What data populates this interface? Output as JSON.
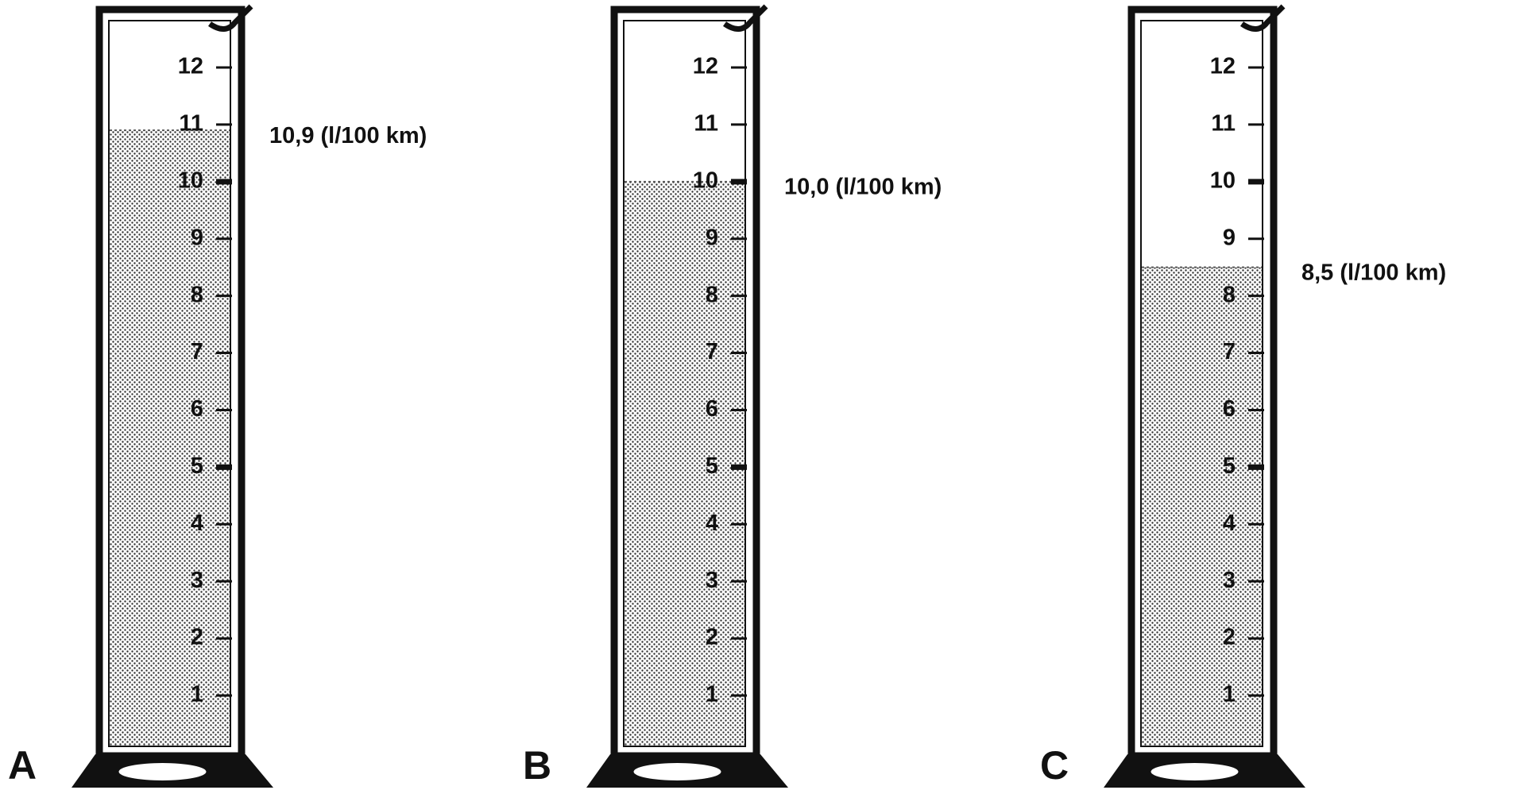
{
  "scale": {
    "ticks": [
      1,
      2,
      3,
      4,
      5,
      6,
      7,
      8,
      9,
      10,
      11,
      12
    ]
  },
  "cylinders": [
    {
      "letter": "A",
      "level": 10.9,
      "level_label": "10,9 (l/100 km)"
    },
    {
      "letter": "B",
      "level": 10.0,
      "level_label": "10,0 (l/100 km)"
    },
    {
      "letter": "C",
      "level": 8.5,
      "level_label": "8,5 (l/100 km)"
    }
  ]
}
